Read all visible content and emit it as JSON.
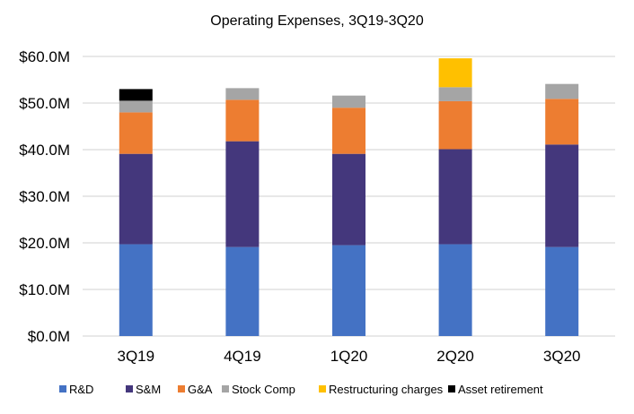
{
  "chart_data": {
    "type": "bar",
    "stacked": true,
    "title": "Operating Expenses, 3Q19-3Q20",
    "xlabel": "",
    "ylabel": "",
    "ylim": [
      0,
      60
    ],
    "yticks": [
      "$0.0M",
      "$10.0M",
      "$20.0M",
      "$30.0M",
      "$40.0M",
      "$50.0M",
      "$60.0M"
    ],
    "grid": true,
    "legend": "bottom",
    "categories": [
      "3Q19",
      "4Q19",
      "1Q20",
      "2Q20",
      "3Q20"
    ],
    "series": [
      {
        "name": "R&D",
        "color": "#4472C4",
        "values": [
          19.7,
          19.1,
          19.5,
          19.7,
          19.1
        ]
      },
      {
        "name": "S&M",
        "color": "#44377C",
        "values": [
          19.4,
          22.7,
          19.6,
          20.4,
          22.0
        ]
      },
      {
        "name": "G&A",
        "color": "#ED7D31",
        "values": [
          8.9,
          8.9,
          9.9,
          10.3,
          9.8
        ]
      },
      {
        "name": "Stock Comp",
        "color": "#A5A5A5",
        "values": [
          2.5,
          2.5,
          2.6,
          3.0,
          3.2
        ]
      },
      {
        "name": "Restructuring charges",
        "color": "#FFC000",
        "values": [
          0,
          0,
          0,
          6.2,
          0
        ]
      },
      {
        "name": "Asset retirement",
        "color": "#000000",
        "values": [
          2.5,
          0,
          0,
          0,
          0
        ]
      }
    ]
  }
}
